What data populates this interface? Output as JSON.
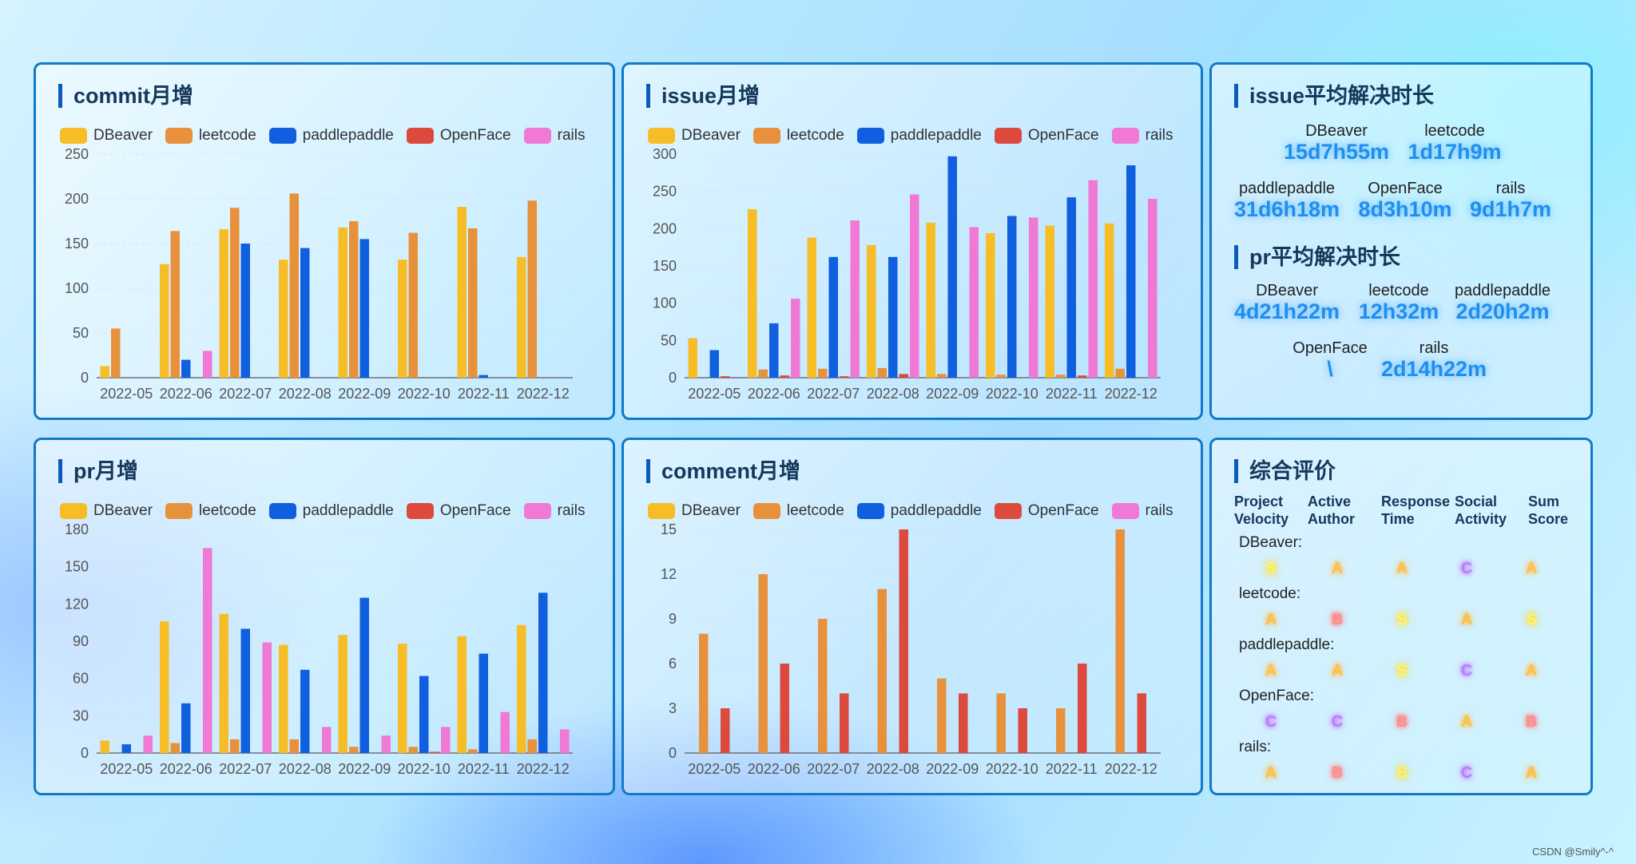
{
  "colors": {
    "DBeaver": "#f6bd26",
    "leetcode": "#e8913c",
    "paddlepaddle": "#0f5fdf",
    "OpenFace": "#dc4a3d",
    "rails": "#ef79d4"
  },
  "series_names": [
    "DBeaver",
    "leetcode",
    "paddlepaddle",
    "OpenFace",
    "rails"
  ],
  "panels": {
    "commit": {
      "title": "commit月增"
    },
    "issue": {
      "title": "issue月增"
    },
    "pr": {
      "title": "pr月增"
    },
    "comment": {
      "title": "comment月增"
    },
    "issue_time": {
      "title": "issue平均解决时长"
    },
    "pr_time": {
      "title": "pr平均解决时长"
    },
    "eval": {
      "title": "综合评价"
    }
  },
  "chart_data": [
    {
      "id": "commit",
      "type": "bar",
      "categories": [
        "2022-05",
        "2022-06",
        "2022-07",
        "2022-08",
        "2022-09",
        "2022-10",
        "2022-11",
        "2022-12"
      ],
      "ylim": [
        0,
        250
      ],
      "yticks": [
        0,
        50,
        100,
        150,
        200,
        250
      ],
      "series": [
        {
          "name": "DBeaver",
          "values": [
            13,
            127,
            166,
            132,
            168,
            132,
            191,
            135
          ]
        },
        {
          "name": "leetcode",
          "values": [
            55,
            164,
            190,
            206,
            175,
            162,
            167,
            198
          ]
        },
        {
          "name": "paddlepaddle",
          "values": [
            0,
            20,
            150,
            145,
            155,
            0,
            3,
            0
          ]
        },
        {
          "name": "OpenFace",
          "values": [
            0,
            0,
            0,
            0,
            0,
            0,
            0,
            0
          ]
        },
        {
          "name": "rails",
          "values": [
            0,
            30,
            0,
            0,
            0,
            0,
            0,
            0
          ]
        }
      ]
    },
    {
      "id": "issue",
      "type": "bar",
      "categories": [
        "2022-05",
        "2022-06",
        "2022-07",
        "2022-08",
        "2022-09",
        "2022-10",
        "2022-11",
        "2022-12"
      ],
      "ylim": [
        0,
        300
      ],
      "yticks": [
        0,
        50,
        100,
        150,
        200,
        250,
        300
      ],
      "series": [
        {
          "name": "DBeaver",
          "values": [
            53,
            226,
            188,
            178,
            208,
            194,
            204,
            207
          ]
        },
        {
          "name": "leetcode",
          "values": [
            0,
            11,
            12,
            13,
            5,
            4,
            4,
            12
          ]
        },
        {
          "name": "paddlepaddle",
          "values": [
            37,
            73,
            162,
            162,
            297,
            217,
            242,
            285
          ]
        },
        {
          "name": "OpenFace",
          "values": [
            2,
            3,
            2,
            5,
            0,
            0,
            3,
            0
          ]
        },
        {
          "name": "rails",
          "values": [
            0,
            106,
            211,
            246,
            202,
            215,
            265,
            240
          ]
        }
      ]
    },
    {
      "id": "pr",
      "type": "bar",
      "categories": [
        "2022-05",
        "2022-06",
        "2022-07",
        "2022-08",
        "2022-09",
        "2022-10",
        "2022-11",
        "2022-12"
      ],
      "ylim": [
        0,
        180
      ],
      "yticks": [
        0,
        30,
        60,
        90,
        120,
        150,
        180
      ],
      "series": [
        {
          "name": "DBeaver",
          "values": [
            10,
            106,
            112,
            87,
            95,
            88,
            94,
            103
          ]
        },
        {
          "name": "leetcode",
          "values": [
            0,
            8,
            11,
            11,
            5,
            5,
            3,
            11
          ]
        },
        {
          "name": "paddlepaddle",
          "values": [
            7,
            40,
            100,
            67,
            125,
            62,
            80,
            129
          ]
        },
        {
          "name": "OpenFace",
          "values": [
            0,
            0,
            0,
            0,
            0,
            1,
            0,
            0
          ]
        },
        {
          "name": "rails",
          "values": [
            14,
            165,
            89,
            21,
            14,
            21,
            33,
            19
          ]
        }
      ]
    },
    {
      "id": "comment",
      "type": "bar",
      "categories": [
        "2022-05",
        "2022-06",
        "2022-07",
        "2022-08",
        "2022-09",
        "2022-10",
        "2022-11",
        "2022-12"
      ],
      "ylim": [
        0,
        15
      ],
      "yticks": [
        0,
        3,
        6,
        9,
        12,
        15
      ],
      "series": [
        {
          "name": "DBeaver",
          "values": [
            0,
            0,
            0,
            0,
            0,
            0,
            0,
            0
          ]
        },
        {
          "name": "leetcode",
          "values": [
            8,
            12,
            9,
            11,
            5,
            4,
            3,
            15
          ]
        },
        {
          "name": "paddlepaddle",
          "values": [
            0,
            0,
            0,
            0,
            0,
            0,
            0,
            0
          ]
        },
        {
          "name": "OpenFace",
          "values": [
            3,
            6,
            4,
            15,
            4,
            3,
            6,
            4
          ]
        },
        {
          "name": "rails",
          "values": [
            0,
            0,
            0,
            0,
            0,
            0,
            0,
            0
          ]
        }
      ]
    }
  ],
  "issue_time": [
    {
      "name": "DBeaver",
      "value": "15d7h55m"
    },
    {
      "name": "leetcode",
      "value": "1d17h9m"
    },
    {
      "name": "paddlepaddle",
      "value": "31d6h18m"
    },
    {
      "name": "OpenFace",
      "value": "8d3h10m"
    },
    {
      "name": "rails",
      "value": "9d1h7m"
    }
  ],
  "pr_time": [
    {
      "name": "DBeaver",
      "value": "4d21h22m"
    },
    {
      "name": "leetcode",
      "value": "12h32m"
    },
    {
      "name": "paddlepaddle",
      "value": "2d20h2m"
    },
    {
      "name": "OpenFace",
      "value": "\\"
    },
    {
      "name": "rails",
      "value": "2d14h22m"
    }
  ],
  "evaluation": {
    "headers": [
      {
        "l1": "Project",
        "l2": "Velocity"
      },
      {
        "l1": "Active",
        "l2": "Author"
      },
      {
        "l1": "Response",
        "l2": "Time"
      },
      {
        "l1": "Social",
        "l2": "Activity"
      },
      {
        "l1": "Sum",
        "l2": "Score"
      }
    ],
    "rows": [
      {
        "project": "DBeaver:",
        "grades": [
          "S",
          "A",
          "A",
          "C",
          "A"
        ]
      },
      {
        "project": "leetcode:",
        "grades": [
          "A",
          "B",
          "S",
          "A",
          "S"
        ]
      },
      {
        "project": "paddlepaddle:",
        "grades": [
          "A",
          "A",
          "S",
          "C",
          "A"
        ]
      },
      {
        "project": "OpenFace:",
        "grades": [
          "C",
          "C",
          "B",
          "A",
          "B"
        ]
      },
      {
        "project": "rails:",
        "grades": [
          "A",
          "B",
          "S",
          "C",
          "A"
        ]
      }
    ]
  },
  "footer": "CSDN @Smily^-^"
}
